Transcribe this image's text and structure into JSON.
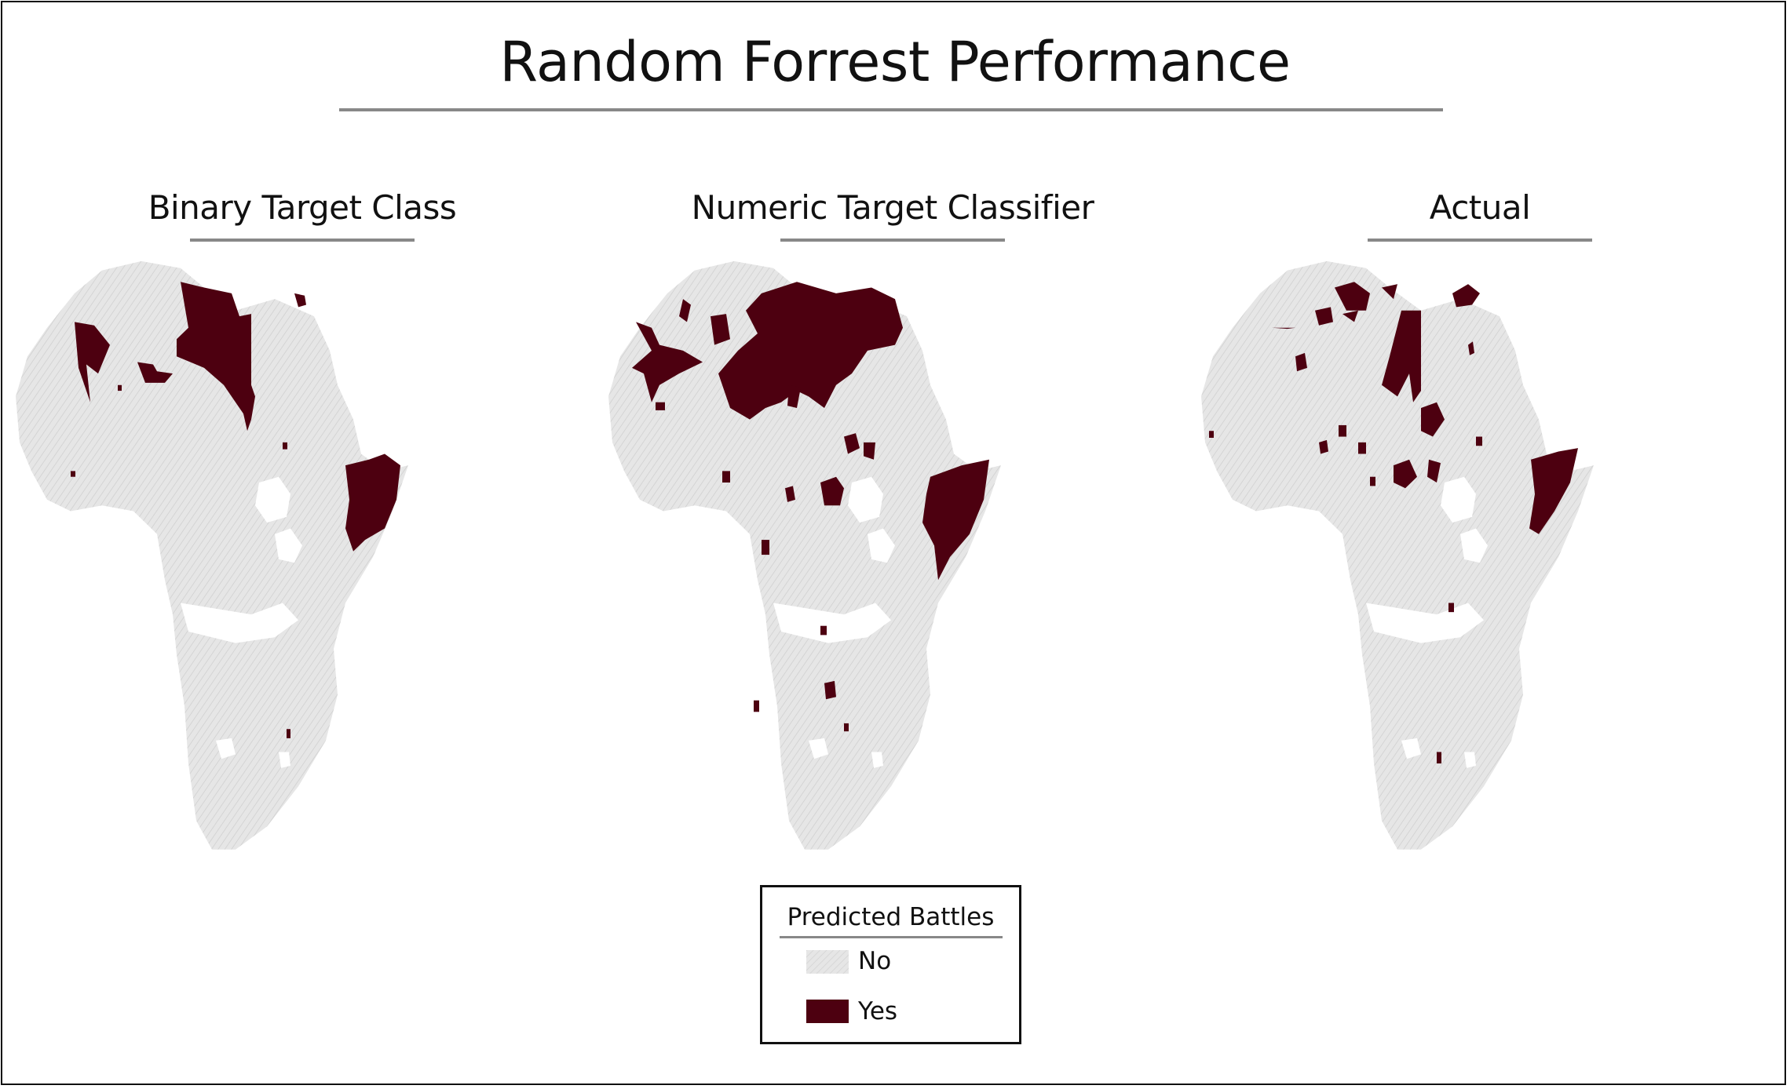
{
  "title": "Random Forrest Performance",
  "panels": [
    {
      "id": "binary",
      "title": "Binary Target Class"
    },
    {
      "id": "numeric",
      "title": "Numeric Target Classifier"
    },
    {
      "id": "actual",
      "title": "Actual"
    }
  ],
  "legend": {
    "title": "Predicted Battles",
    "items": [
      {
        "label": "No",
        "color": "#e6e6e6",
        "pattern": "hatched"
      },
      {
        "label": "Yes",
        "color": "#4d0010",
        "pattern": "solid"
      }
    ]
  },
  "colors": {
    "land": "#e6e6e6",
    "battle": "#4d0010",
    "rule": "#888888",
    "border": "#111111"
  }
}
